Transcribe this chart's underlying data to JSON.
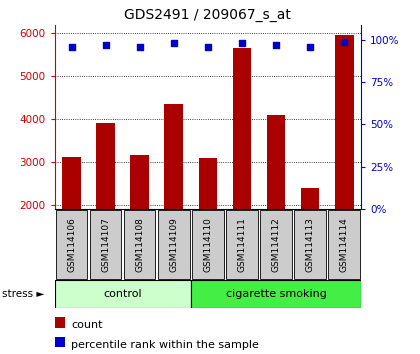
{
  "title": "GDS2491 / 209067_s_at",
  "samples": [
    "GSM114106",
    "GSM114107",
    "GSM114108",
    "GSM114109",
    "GSM114110",
    "GSM114111",
    "GSM114112",
    "GSM114113",
    "GSM114114"
  ],
  "counts": [
    3100,
    3900,
    3150,
    4350,
    3080,
    5650,
    4100,
    2380,
    5950
  ],
  "percentiles": [
    96,
    97,
    96,
    98,
    96,
    98,
    97,
    96,
    99
  ],
  "ylim_left": [
    1900,
    6200
  ],
  "ylim_right": [
    0,
    109
  ],
  "yticks_left": [
    2000,
    3000,
    4000,
    5000,
    6000
  ],
  "yticks_right": [
    0,
    25,
    50,
    75,
    100
  ],
  "groups": [
    {
      "label": "control",
      "start": 0,
      "end": 4,
      "color": "#ccffcc"
    },
    {
      "label": "cigarette smoking",
      "start": 4,
      "end": 9,
      "color": "#44ee44"
    }
  ],
  "bar_color": "#aa0000",
  "dot_color": "#0000cc",
  "bar_width": 0.55,
  "title_fontsize": 10,
  "axis_color_left": "#cc0000",
  "axis_color_right": "#0000cc",
  "grid_style": "dotted",
  "stress_label": "stress ►",
  "legend_count_label": "count",
  "legend_pct_label": "percentile rank within the sample",
  "label_box_color": "#cccccc",
  "pct_scale_factor": 96
}
